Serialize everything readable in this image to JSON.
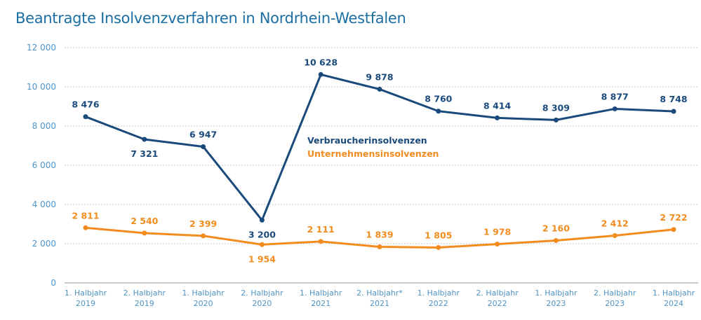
{
  "chart_data": {
    "type": "line",
    "title": "Beantragte Insolvenzverfahren in Nordrhein-Westfalen",
    "xlabel": "",
    "ylabel": "",
    "ylim": [
      0,
      12000
    ],
    "yticks": [
      0,
      2000,
      4000,
      6000,
      8000,
      10000,
      12000
    ],
    "ytick_labels": [
      "0",
      "2 000",
      "4 000",
      "6 000",
      "8 000",
      "10 000",
      "12 000"
    ],
    "grid": true,
    "categories": [
      [
        "1. Halbjahr",
        "2019"
      ],
      [
        "2. Halbjahr",
        "2019"
      ],
      [
        "1. Halbjahr",
        "2020"
      ],
      [
        "2. Halbjahr",
        "2020"
      ],
      [
        "1. Halbjahr",
        "2021"
      ],
      [
        "2. Halbjahr*",
        "2021"
      ],
      [
        "1. Halbjahr",
        "2022"
      ],
      [
        "2. Halbjahr",
        "2022"
      ],
      [
        "1. Halbjahr",
        "2023"
      ],
      [
        "2. Halbjahr",
        "2023"
      ],
      [
        "1. Halbjahr",
        "2024"
      ]
    ],
    "series": [
      {
        "name": "Verbraucherinsolvenzen",
        "color": "#1a4a7c",
        "values": [
          8476,
          7321,
          6947,
          3200,
          10628,
          9878,
          8760,
          8414,
          8309,
          8877,
          8748
        ],
        "labels": [
          "8 476",
          "7 321",
          "6 947",
          "3 200",
          "10 628",
          "9 878",
          "8 760",
          "8 414",
          "8 309",
          "8 877",
          "8 748"
        ],
        "label_below": [
          false,
          true,
          false,
          true,
          false,
          false,
          false,
          false,
          false,
          false,
          false
        ]
      },
      {
        "name": "Unternehmensinsolvenzen",
        "color": "#f28c1f",
        "values": [
          2811,
          2540,
          2399,
          1954,
          2111,
          1839,
          1805,
          1978,
          2160,
          2412,
          2722
        ],
        "labels": [
          "2 811",
          "2 540",
          "2 399",
          "1 954",
          "2 111",
          "1 839",
          "1 805",
          "1 978",
          "2 160",
          "2 412",
          "2 722"
        ],
        "label_below": [
          false,
          false,
          false,
          true,
          false,
          false,
          false,
          false,
          false,
          false,
          false
        ]
      }
    ],
    "legend_placement": "center"
  }
}
